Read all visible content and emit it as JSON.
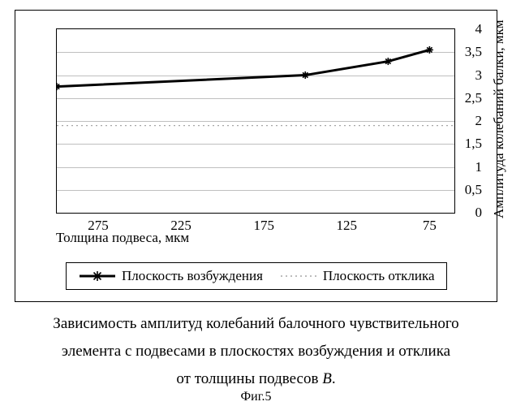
{
  "chart": {
    "type": "line",
    "background_color": "#ffffff",
    "grid_color": "#bfbfbf",
    "axis_color": "#000000",
    "x_axis": {
      "title": "Толщина подвеса, мкм",
      "ticks": [
        275,
        225,
        175,
        125,
        75
      ],
      "reversed": true,
      "min": 300,
      "max": 60
    },
    "y_axis": {
      "title": "Амплитуда колебаний балки, мкм",
      "ticks": [
        0,
        0.5,
        1,
        1.5,
        2,
        2.5,
        3,
        3.5,
        4
      ],
      "tick_labels": [
        "0",
        "0,5",
        "1",
        "1,5",
        "2",
        "2,5",
        "3",
        "3,5",
        "4"
      ],
      "min": 0,
      "max": 4,
      "side": "right"
    },
    "series": [
      {
        "name": "Плоскость возбуждения",
        "color": "#000000",
        "line_width": 3,
        "marker": "asterisk",
        "marker_size": 9,
        "x": [
          300,
          150,
          100,
          75
        ],
        "y": [
          2.75,
          3.0,
          3.3,
          3.55
        ]
      },
      {
        "name": "Плоскость отклика",
        "color": "#a6a6a6",
        "line_width": 1.2,
        "dash": "2 4",
        "marker": "none",
        "x": [
          300,
          60
        ],
        "y": [
          1.9,
          1.9
        ]
      }
    ],
    "legend": {
      "items": [
        "Плоскость возбуждения",
        "Плоскость отклика"
      ]
    }
  },
  "caption": {
    "line1": "Зависимость амплитуд колебаний балочного чувствительного",
    "line2": "элемента с подвесами в плоскостях возбуждения и отклика",
    "line3": "от толщины подвесов "
  },
  "caption_italic": "В",
  "caption_tail": ".",
  "figure_label": "Фиг.5"
}
